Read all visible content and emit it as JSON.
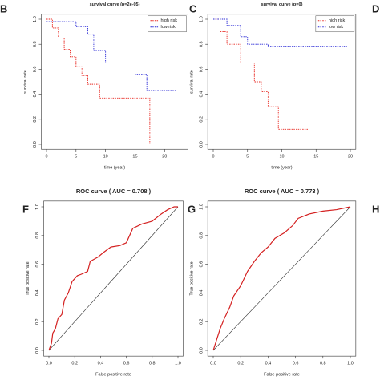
{
  "chart_data": [
    {
      "type": "line",
      "panel": "B",
      "title": "survival curve (p=2e-05)",
      "xlabel": "time (year)",
      "ylabel": "survival rate",
      "xlim": [
        0,
        22
      ],
      "ylim": [
        0,
        1
      ],
      "xticks": [
        0,
        5,
        10,
        15,
        20
      ],
      "yticks": [
        {
          "value": 0,
          "label": "0.0"
        },
        {
          "value": 0.2,
          "label": "0.2"
        },
        {
          "value": 0.4,
          "label": "0.4"
        },
        {
          "value": 0.6,
          "label": "0.6"
        },
        {
          "value": 0.8,
          "label": "0.8"
        },
        {
          "value": 1,
          "label": "1.0"
        }
      ],
      "legend": "top-right",
      "series": [
        {
          "name": "high risk",
          "color": "#e8261f",
          "x": [
            0,
            1,
            1,
            2,
            2,
            3,
            3,
            4,
            4,
            5,
            5,
            6,
            6,
            7,
            7,
            9,
            9,
            17.5,
            17.5
          ],
          "values": [
            1,
            1,
            0.93,
            0.93,
            0.85,
            0.85,
            0.76,
            0.76,
            0.7,
            0.7,
            0.62,
            0.62,
            0.55,
            0.55,
            0.48,
            0.48,
            0.37,
            0.37,
            0
          ]
        },
        {
          "name": "low risk",
          "color": "#2a2ad6",
          "x": [
            0,
            5,
            5,
            7,
            7,
            8,
            8,
            10,
            10,
            15,
            15,
            17,
            17,
            22
          ],
          "values": [
            0.98,
            0.98,
            0.94,
            0.94,
            0.88,
            0.88,
            0.75,
            0.75,
            0.65,
            0.65,
            0.56,
            0.56,
            0.43,
            0.43
          ]
        }
      ]
    },
    {
      "type": "line",
      "panel": "C",
      "title": "survival curve (p=0)",
      "xlabel": "time (year)",
      "ylabel": "survival rate",
      "xlim": [
        0,
        20
      ],
      "ylim": [
        0,
        1
      ],
      "xticks": [
        0,
        5,
        10,
        15,
        20
      ],
      "yticks": [
        {
          "value": 0,
          "label": "0.0"
        },
        {
          "value": 0.2,
          "label": "0.2"
        },
        {
          "value": 0.4,
          "label": "0.4"
        },
        {
          "value": 0.6,
          "label": "0.6"
        },
        {
          "value": 0.8,
          "label": "0.8"
        },
        {
          "value": 1,
          "label": "1.0"
        }
      ],
      "legend": "top-right",
      "series": [
        {
          "name": "high risk",
          "color": "#e8261f",
          "x": [
            0,
            1,
            1,
            2,
            2,
            4,
            4,
            6,
            6,
            7,
            7,
            8,
            8,
            9.5,
            9.5,
            14
          ],
          "values": [
            1,
            1,
            0.9,
            0.9,
            0.8,
            0.8,
            0.65,
            0.65,
            0.5,
            0.5,
            0.42,
            0.42,
            0.3,
            0.3,
            0.12,
            0.12
          ]
        },
        {
          "name": "low risk",
          "color": "#2a2ad6",
          "x": [
            0,
            2,
            2,
            4,
            4,
            5,
            5,
            8,
            8,
            19.5
          ],
          "values": [
            1,
            1,
            0.95,
            0.95,
            0.86,
            0.86,
            0.8,
            0.8,
            0.78,
            0.78
          ]
        }
      ]
    },
    {
      "type": "line",
      "panel": "F",
      "title": "ROC curve ( AUC =  0.708 )",
      "xlabel": "False positive rate",
      "ylabel": "True positive rate",
      "xlim": [
        0,
        1
      ],
      "ylim": [
        0,
        1
      ],
      "xticks": [
        {
          "value": 0,
          "label": "0.0"
        },
        {
          "value": 0.2,
          "label": "0.2"
        },
        {
          "value": 0.4,
          "label": "0.4"
        },
        {
          "value": 0.6,
          "label": "0.6"
        },
        {
          "value": 0.8,
          "label": "0.8"
        },
        {
          "value": 1,
          "label": "1.0"
        }
      ],
      "yticks": [
        {
          "value": 0,
          "label": "0.0"
        },
        {
          "value": 0.2,
          "label": "0.2"
        },
        {
          "value": 0.4,
          "label": "0.4"
        },
        {
          "value": 0.6,
          "label": "0.6"
        },
        {
          "value": 0.8,
          "label": "0.8"
        },
        {
          "value": 1,
          "label": "1.0"
        }
      ],
      "series": [
        {
          "color": "#d42020",
          "x": [
            0,
            0.02,
            0.03,
            0.05,
            0.07,
            0.1,
            0.12,
            0.15,
            0.18,
            0.22,
            0.25,
            0.3,
            0.32,
            0.38,
            0.42,
            0.48,
            0.55,
            0.6,
            0.65,
            0.72,
            0.8,
            0.87,
            0.92,
            0.97,
            1
          ],
          "values": [
            0,
            0.05,
            0.12,
            0.15,
            0.22,
            0.25,
            0.35,
            0.4,
            0.48,
            0.52,
            0.53,
            0.55,
            0.62,
            0.65,
            0.68,
            0.72,
            0.73,
            0.75,
            0.85,
            0.88,
            0.9,
            0.95,
            0.98,
            1,
            1
          ]
        }
      ]
    },
    {
      "type": "line",
      "panel": "G",
      "title": "ROC curve ( AUC =  0.773 )",
      "xlabel": "False positive rate",
      "ylabel": "True positive rate",
      "xlim": [
        0,
        1
      ],
      "ylim": [
        0,
        1
      ],
      "xticks": [
        {
          "value": 0,
          "label": "0.0"
        },
        {
          "value": 0.2,
          "label": "0.2"
        },
        {
          "value": 0.4,
          "label": "0.4"
        },
        {
          "value": 0.6,
          "label": "0.6"
        },
        {
          "value": 0.8,
          "label": "0.8"
        },
        {
          "value": 1,
          "label": "1.0"
        }
      ],
      "yticks": [
        {
          "value": 0,
          "label": "0.0"
        },
        {
          "value": 0.2,
          "label": "0.2"
        },
        {
          "value": 0.4,
          "label": "0.4"
        },
        {
          "value": 0.6,
          "label": "0.6"
        },
        {
          "value": 0.8,
          "label": "0.8"
        },
        {
          "value": 1,
          "label": "1.0"
        }
      ],
      "series": [
        {
          "color": "#d42020",
          "x": [
            0,
            0.02,
            0.05,
            0.08,
            0.12,
            0.15,
            0.2,
            0.25,
            0.3,
            0.35,
            0.4,
            0.45,
            0.52,
            0.58,
            0.62,
            0.7,
            0.8,
            0.9,
            1
          ],
          "values": [
            0,
            0.06,
            0.15,
            0.22,
            0.3,
            0.38,
            0.45,
            0.55,
            0.62,
            0.68,
            0.72,
            0.78,
            0.82,
            0.87,
            0.92,
            0.95,
            0.97,
            0.98,
            1
          ]
        }
      ]
    }
  ],
  "edge_panels": [
    "D",
    "H"
  ]
}
